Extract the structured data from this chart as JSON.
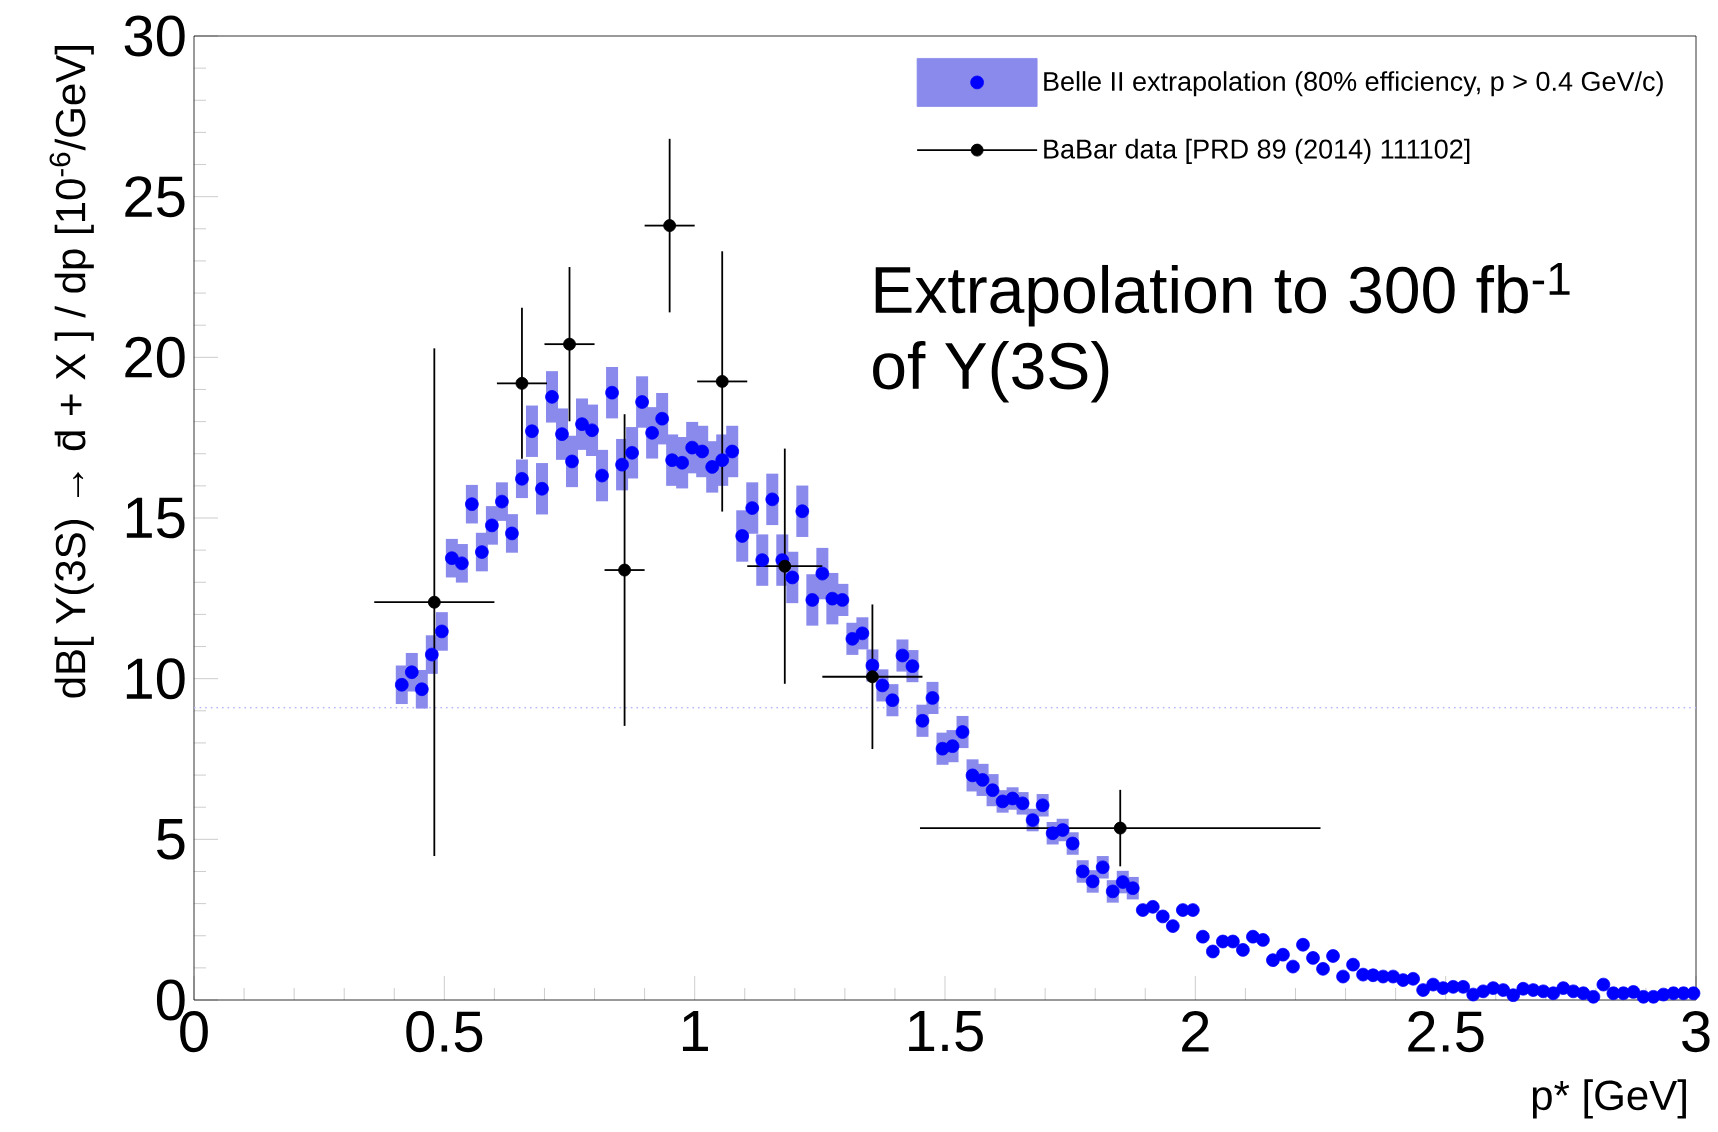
{
  "chart_data": {
    "type": "scatter",
    "xlabel": "p* [GeV]",
    "ylabel": "dB[ Y(3S) → d̄ + X ] / dp   [10$^{-6}$/GeV]",
    "annotations": [
      "Extrapolation to 300 fb$^{-1}$",
      "of Y(3S)"
    ],
    "xlim": [
      0,
      3
    ],
    "xticks": [
      0,
      0.5,
      1,
      1.5,
      2,
      2.5,
      3
    ],
    "ylim": [
      0,
      30
    ],
    "yticks": [
      0,
      5,
      10,
      15,
      20,
      25,
      30
    ],
    "legend": "top right",
    "marker": "circle",
    "ref_lines": [
      {
        "axis": "y",
        "value": 9.1,
        "color": "#b4b4ff",
        "line_style": "dotted"
      }
    ],
    "series": [
      {
        "name": "Belle II extrapolation (80% efficiency, p > 0.4 GeV/c)",
        "color": "#0000ff",
        "x": [
          0.415,
          0.435,
          0.455,
          0.475,
          0.495,
          0.515,
          0.535,
          0.555,
          0.575,
          0.595,
          0.615,
          0.635,
          0.655,
          0.675,
          0.695,
          0.715,
          0.735,
          0.755,
          0.775,
          0.795,
          0.815,
          0.835,
          0.855,
          0.875,
          0.895,
          0.915,
          0.935,
          0.955,
          0.975,
          0.995,
          1.015,
          1.035,
          1.055,
          1.075,
          1.095,
          1.115,
          1.135,
          1.155,
          1.175,
          1.195,
          1.215,
          1.235,
          1.255,
          1.275,
          1.295,
          1.315,
          1.335,
          1.355,
          1.375,
          1.395,
          1.415,
          1.435,
          1.455,
          1.475,
          1.495,
          1.515,
          1.535,
          1.555,
          1.575,
          1.595,
          1.615,
          1.635,
          1.655,
          1.675,
          1.695,
          1.715,
          1.735,
          1.755,
          1.775,
          1.795,
          1.815,
          1.835,
          1.855,
          1.875,
          1.895,
          1.915,
          1.935,
          1.955,
          1.975,
          1.995,
          2.015,
          2.035,
          2.055,
          2.075,
          2.095,
          2.115,
          2.135,
          2.155,
          2.175,
          2.195,
          2.215,
          2.235,
          2.255,
          2.275,
          2.295,
          2.315,
          2.335,
          2.355,
          2.375,
          2.395,
          2.415,
          2.435,
          2.455,
          2.475,
          2.495,
          2.515,
          2.535,
          2.555,
          2.575,
          2.595,
          2.615,
          2.635,
          2.655,
          2.675,
          2.695,
          2.715,
          2.735,
          2.755,
          2.775,
          2.795,
          2.815,
          2.835,
          2.855,
          2.875,
          2.895,
          2.915,
          2.935,
          2.955,
          2.975,
          2.995
        ],
        "values": [
          9.81,
          10.2,
          9.67,
          10.75,
          11.47,
          13.75,
          13.59,
          15.43,
          13.94,
          14.77,
          15.51,
          14.52,
          16.22,
          17.7,
          15.91,
          18.77,
          17.61,
          16.76,
          17.92,
          17.73,
          16.32,
          18.9,
          16.66,
          17.03,
          18.61,
          17.65,
          18.09,
          16.8,
          16.72,
          17.19,
          17.07,
          16.59,
          16.8,
          17.07,
          14.44,
          15.31,
          13.69,
          15.58,
          13.69,
          13.15,
          15.21,
          12.45,
          13.27,
          12.49,
          12.45,
          11.24,
          11.41,
          10.41,
          9.79,
          9.33,
          10.72,
          10.39,
          8.69,
          9.4,
          7.82,
          7.9,
          8.34,
          6.99,
          6.85,
          6.53,
          6.18,
          6.27,
          6.12,
          5.6,
          6.06,
          5.19,
          5.29,
          4.87,
          4.0,
          3.69,
          4.13,
          3.38,
          3.67,
          3.48,
          2.8,
          2.9,
          2.6,
          2.3,
          2.8,
          2.8,
          1.97,
          1.51,
          1.82,
          1.82,
          1.56,
          1.97,
          1.87,
          1.24,
          1.41,
          1.04,
          1.72,
          1.31,
          0.97,
          1.37,
          0.73,
          1.1,
          0.79,
          0.77,
          0.73,
          0.73,
          0.62,
          0.66,
          0.31,
          0.48,
          0.37,
          0.41,
          0.41,
          0.17,
          0.27,
          0.37,
          0.31,
          0.15,
          0.35,
          0.31,
          0.27,
          0.21,
          0.37,
          0.27,
          0.21,
          0.1,
          0.48,
          0.21,
          0.21,
          0.25,
          0.1,
          0.1,
          0.17,
          0.21,
          0.21,
          0.21
        ],
        "errors": [
          0.6,
          0.6,
          0.6,
          0.6,
          0.6,
          0.6,
          0.6,
          0.6,
          0.6,
          0.6,
          0.6,
          0.6,
          0.6,
          0.8,
          0.8,
          0.8,
          0.8,
          0.8,
          0.8,
          0.8,
          0.8,
          0.8,
          0.8,
          0.8,
          0.8,
          0.8,
          0.8,
          0.8,
          0.8,
          0.8,
          0.8,
          0.8,
          0.8,
          0.8,
          0.8,
          0.8,
          0.8,
          0.8,
          0.8,
          0.8,
          0.8,
          0.8,
          0.8,
          0.8,
          0.5,
          0.5,
          0.5,
          0.5,
          0.5,
          0.5,
          0.5,
          0.5,
          0.5,
          0.5,
          0.5,
          0.5,
          0.5,
          0.5,
          0.5,
          0.5,
          0.35,
          0.35,
          0.35,
          0.35,
          0.35,
          0.35,
          0.35,
          0.35,
          0.35,
          0.35,
          0.35,
          0.35,
          0.35,
          0.35,
          null,
          null,
          null,
          null,
          null,
          null,
          null,
          null,
          null,
          null,
          null,
          null,
          null,
          null,
          null,
          null,
          null,
          null,
          null,
          null,
          null,
          null,
          null,
          null,
          null,
          null,
          null,
          null,
          null,
          null,
          null,
          null,
          null,
          null,
          null,
          null,
          null,
          null,
          null,
          null,
          null,
          null,
          null,
          null,
          null,
          null,
          null,
          null,
          null,
          null,
          null,
          null,
          null,
          null,
          null,
          null
        ]
      },
      {
        "name": "BaBar data  [PRD 89 (2014) 111102]",
        "color": "#000000",
        "x": [
          0.48,
          0.655,
          0.75,
          0.86,
          0.95,
          1.055,
          1.18,
          1.355,
          1.85
        ],
        "values": [
          12.38,
          19.19,
          20.41,
          13.38,
          24.1,
          19.25,
          13.5,
          10.06,
          5.35
        ],
        "errors": [
          7.9,
          2.35,
          2.4,
          4.85,
          2.7,
          4.05,
          3.66,
          2.25,
          1.19
        ],
        "xerrors": [
          0.12,
          0.05,
          0.05,
          0.04,
          0.05,
          0.05,
          0.075,
          0.1,
          0.4
        ]
      }
    ]
  }
}
